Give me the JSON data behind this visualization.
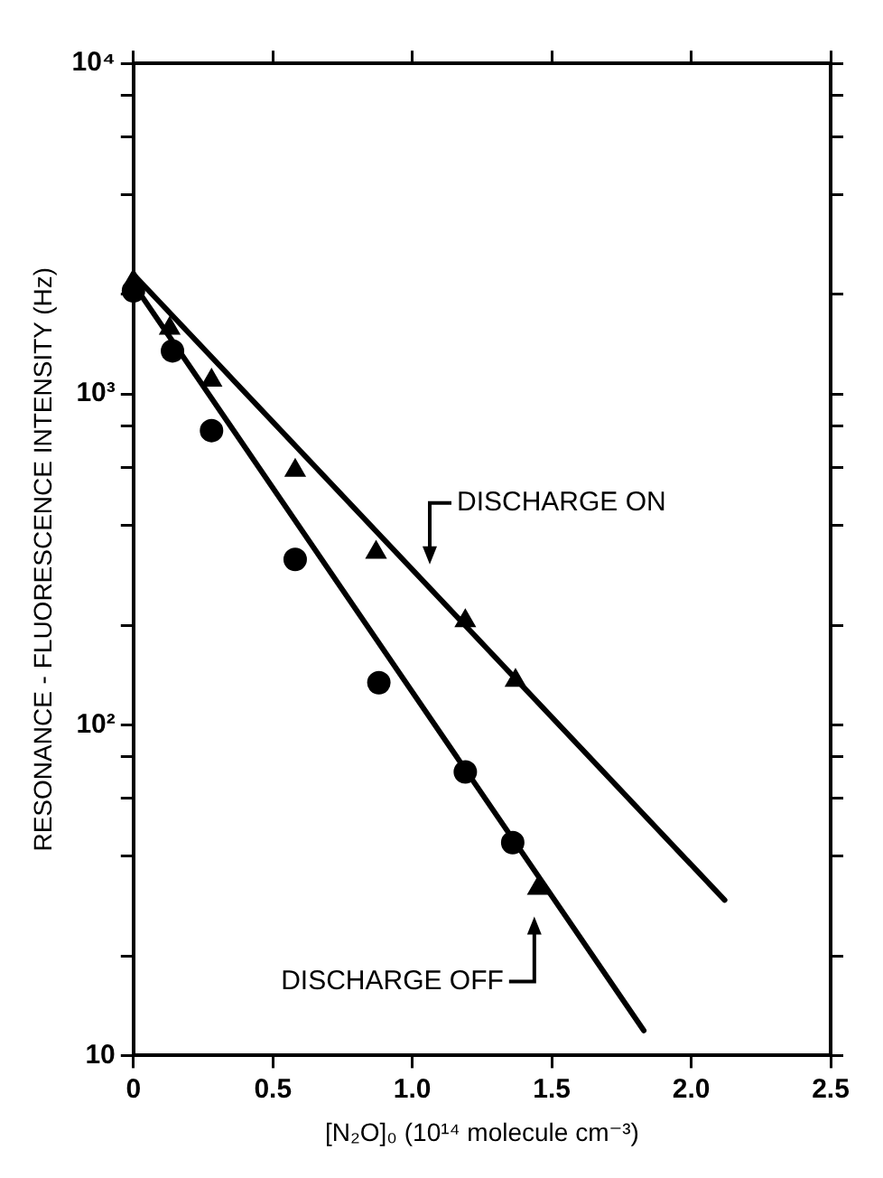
{
  "chart_data": {
    "type": "scatter",
    "xlabel": "[N₂O]₀ (10¹⁴ molecule cm⁻³)",
    "ylabel": "RESONANCE - FLUORESCENCE INTENSITY (Hz)",
    "log": "y",
    "xlim": [
      0,
      2.5
    ],
    "ylim": [
      10,
      10000
    ],
    "xticks": [
      0,
      {
        "value": 0.5,
        "label": "0.5"
      },
      {
        "value": 1,
        "label": "1.0"
      },
      {
        "value": 1.5,
        "label": "1.5"
      },
      {
        "value": 2,
        "label": "2.0"
      },
      {
        "value": 2.5,
        "label": "2.5"
      }
    ],
    "yticks": [
      10,
      {
        "value": 20,
        "label": null
      },
      {
        "value": 40,
        "label": null
      },
      {
        "value": 60,
        "label": null
      },
      {
        "value": 80,
        "label": null
      },
      {
        "value": 100,
        "label": "10²"
      },
      {
        "value": 200,
        "label": null
      },
      {
        "value": 400,
        "label": null
      },
      {
        "value": 600,
        "label": null
      },
      {
        "value": 800,
        "label": null
      },
      {
        "value": 1000,
        "label": "10³"
      },
      {
        "value": 2000,
        "label": null
      },
      {
        "value": 4000,
        "label": null
      },
      {
        "value": 6000,
        "label": null
      },
      {
        "value": 8000,
        "label": null
      },
      {
        "value": 10000,
        "label": "10⁴"
      }
    ],
    "grid": false,
    "legend": false,
    "series": [
      {
        "marker": "circle",
        "color": "#000000",
        "x": [
          0,
          0.14,
          0.28,
          0.58,
          0.88,
          1.19,
          1.36
        ],
        "values": [
          2050,
          1350,
          775,
          316,
          134,
          72,
          44
        ]
      },
      {
        "marker": "triangle",
        "color": "#000000",
        "x": [
          0,
          0.13,
          0.28,
          0.58,
          0.87,
          1.19,
          1.37,
          1.45
        ],
        "values": [
          2200,
          1580,
          1100,
          587,
          332,
          206,
          136,
          32
        ]
      },
      {
        "type": "line",
        "marker": "none",
        "color": "#000000",
        "x": [
          0,
          2.12
        ],
        "values": [
          2300,
          29.5
        ]
      },
      {
        "type": "line",
        "marker": "none",
        "color": "#000000",
        "x": [
          0,
          1.83
        ],
        "values": [
          2150,
          11.9
        ]
      }
    ],
    "annotations": [
      "DISCHARGE ON",
      "DISCHARGE OFF"
    ]
  }
}
